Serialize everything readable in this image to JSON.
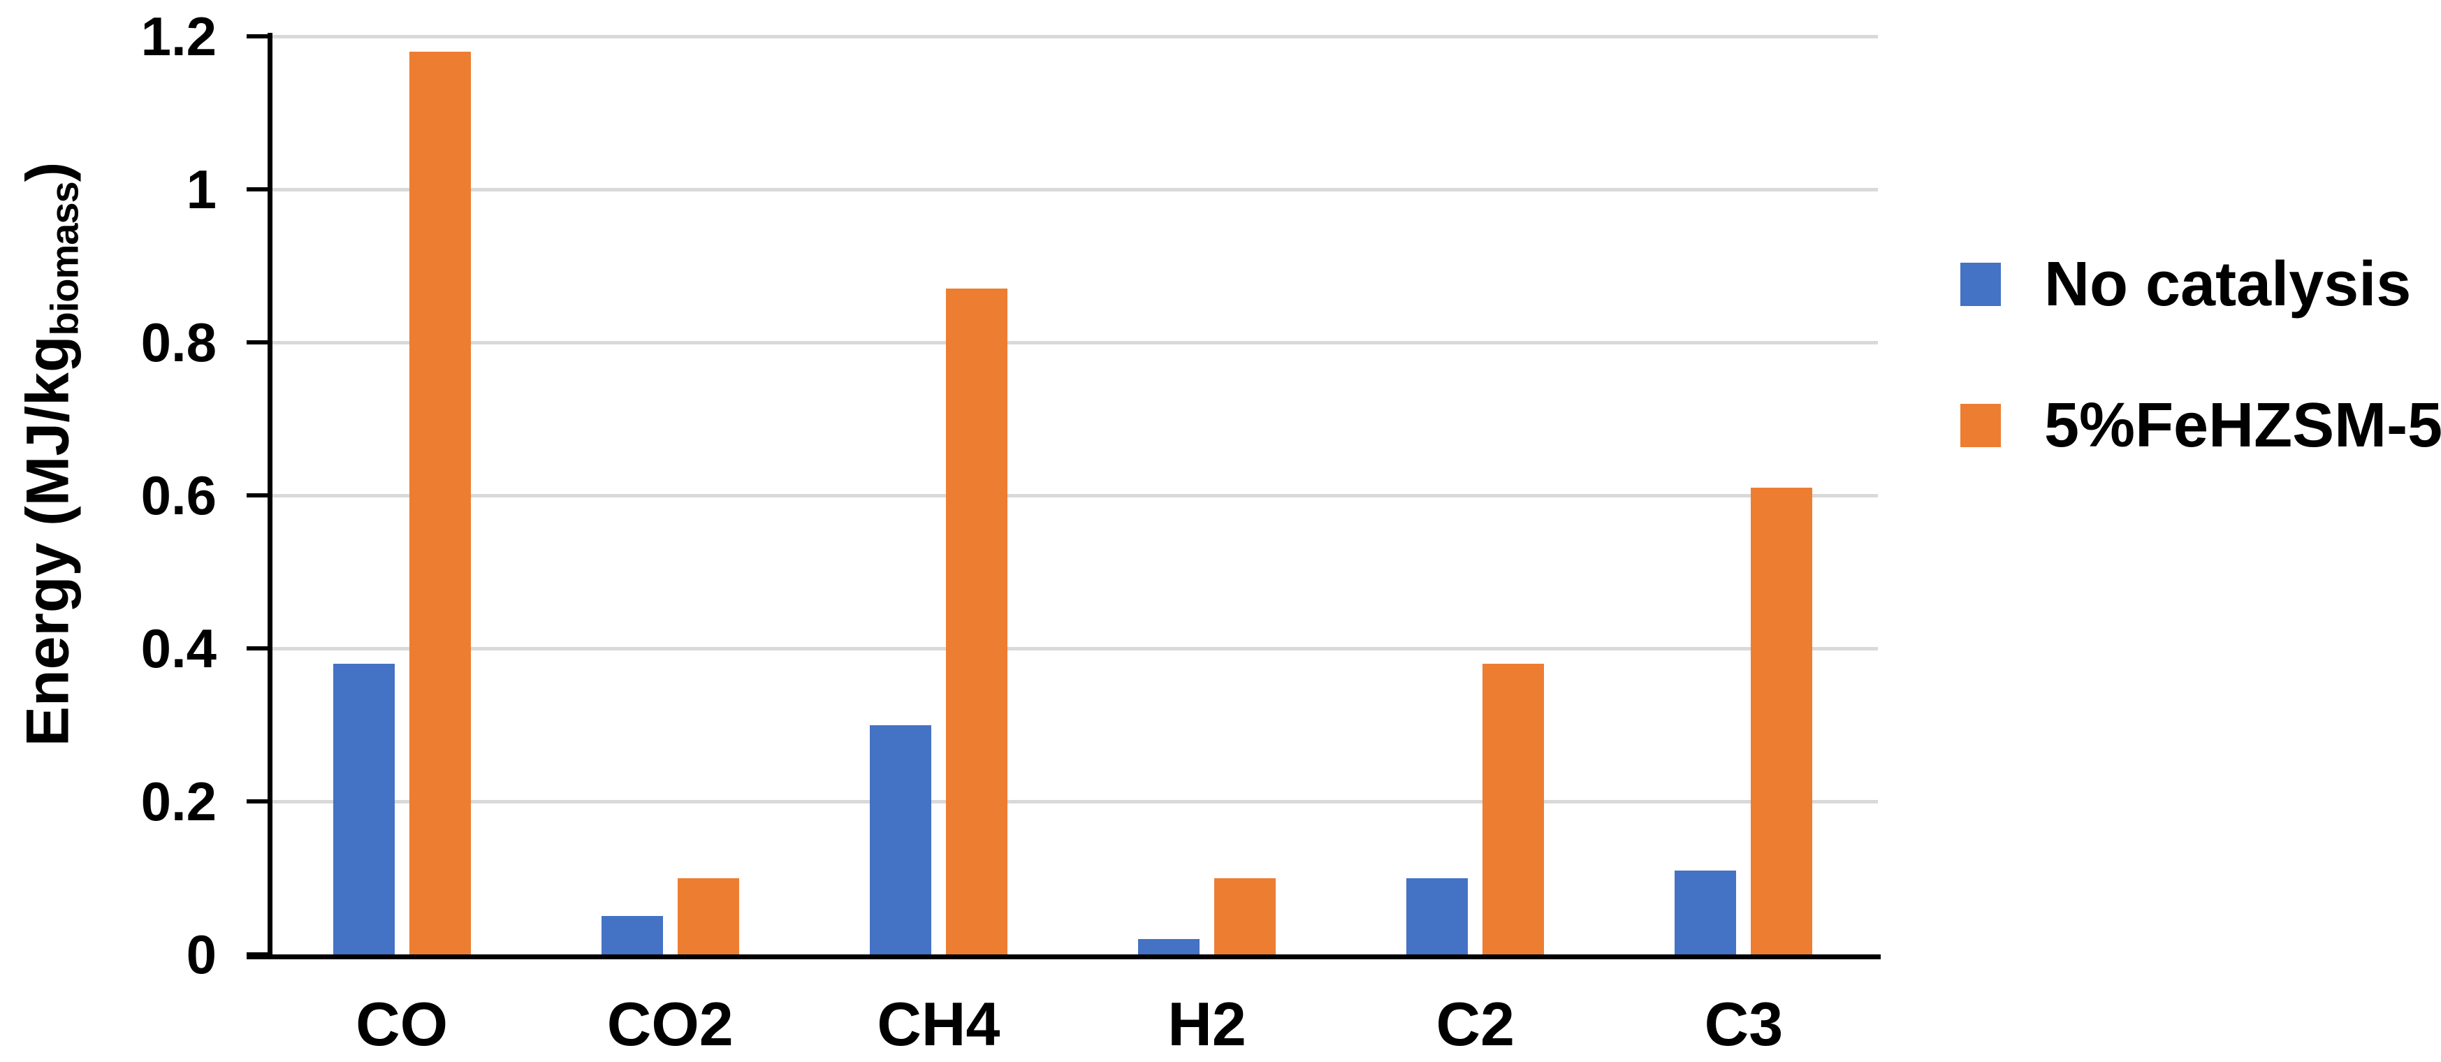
{
  "chart_data": {
    "type": "bar",
    "title": "",
    "categories": [
      "CO",
      "CO2",
      "CH4",
      "H2",
      "C2",
      "C3"
    ],
    "series": [
      {
        "name": "No catalysis",
        "color": "#4472C4",
        "values": [
          0.38,
          0.05,
          0.3,
          0.02,
          0.1,
          0.11
        ]
      },
      {
        "name": "5%FeHZSM-5",
        "color": "#ED7D31",
        "values": [
          1.18,
          0.1,
          0.87,
          0.1,
          0.38,
          0.61
        ]
      }
    ],
    "ylabel": "Energy (MJ/kg_biomass)",
    "ylabel_main": "Energy (MJ/kg",
    "ylabel_subscript": "biomass",
    "ylabel_close": ")",
    "xlabel": "",
    "yticks": [
      "0",
      "0.2",
      "0.4",
      "0.6",
      "0.8",
      "1",
      "1.2"
    ],
    "ytick_values": [
      0,
      0.2,
      0.4,
      0.6,
      0.8,
      1.0,
      1.2
    ],
    "ylim": [
      0,
      1.2
    ],
    "grid": true,
    "legend_position": "right",
    "colors": {
      "gridline": "#D9D9D9",
      "axis": "#000000",
      "text": "#000000",
      "background": "#FFFFFF"
    }
  }
}
